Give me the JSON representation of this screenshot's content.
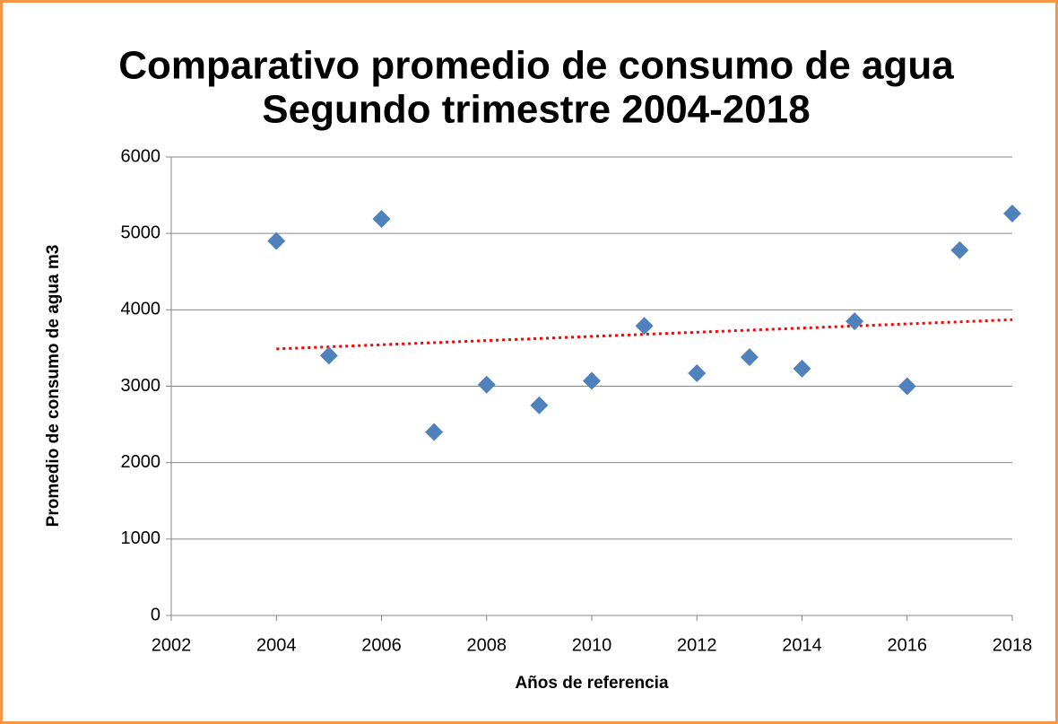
{
  "chart_data": {
    "type": "scatter",
    "title": [
      "Comparativo promedio de consumo de agua",
      "Segundo trimestre 2004-2018"
    ],
    "x_label": "Años de referencia",
    "y_label": "Promedio de consumo de agua m3",
    "series": [
      {
        "color": "#4f81bd",
        "x": [
          2004,
          2005,
          2006,
          2007,
          2008,
          2009,
          2010,
          2011,
          2012,
          2013,
          2014,
          2015,
          2016,
          2017,
          2018
        ],
        "values": [
          4900,
          3400,
          5190,
          2400,
          3020,
          2750,
          3070,
          3790,
          3170,
          3380,
          3230,
          3850,
          3000,
          4780,
          5260
        ]
      }
    ],
    "trendline": {
      "kind": "linear",
      "color": "#ff0000"
    },
    "xlim": [
      2002,
      2018
    ],
    "xticks": [
      2002,
      2004,
      2006,
      2008,
      2010,
      2012,
      2014,
      2016,
      2018
    ],
    "ylim": [
      0,
      6000
    ],
    "yticks": [
      0,
      1000,
      2000,
      3000,
      4000,
      5000,
      6000
    ],
    "grid": true
  }
}
